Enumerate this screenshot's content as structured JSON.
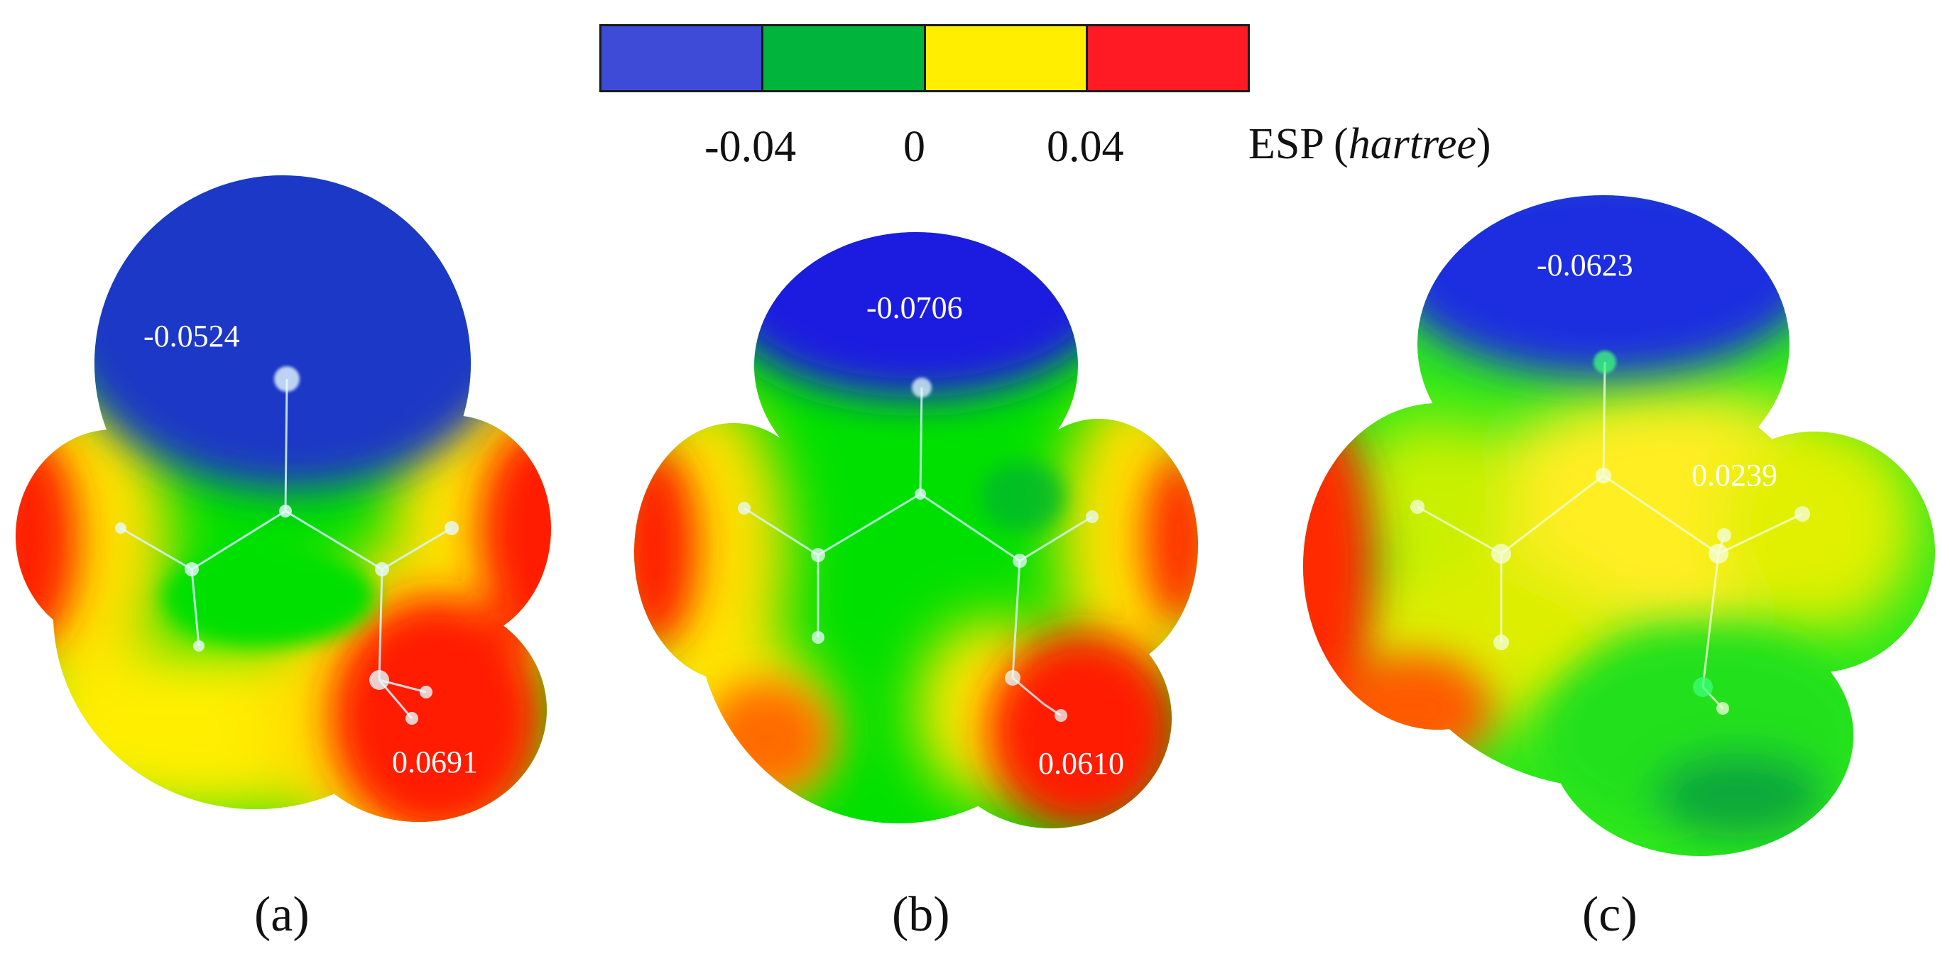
{
  "colorbar": {
    "segments": [
      {
        "name": "blue",
        "color": "#3d4bd6"
      },
      {
        "name": "green",
        "color": "#00b43c"
      },
      {
        "name": "yellow",
        "color": "#ffee00"
      },
      {
        "name": "red",
        "color": "#ff1a24"
      }
    ],
    "ticks": [
      "-0.04",
      "0",
      "0.04"
    ],
    "label_prefix": "ESP (",
    "label_unit": "hartree",
    "label_suffix": ")"
  },
  "panels": [
    {
      "id": "a",
      "label": "(a)",
      "min_value": "-0.0524",
      "max_value": "0.0691"
    },
    {
      "id": "b",
      "label": "(b)",
      "min_value": "-0.0706",
      "max_value": "0.0610"
    },
    {
      "id": "c",
      "label": "(c)",
      "max_value": "0.0239",
      "min_value": "-0.0623"
    }
  ]
}
